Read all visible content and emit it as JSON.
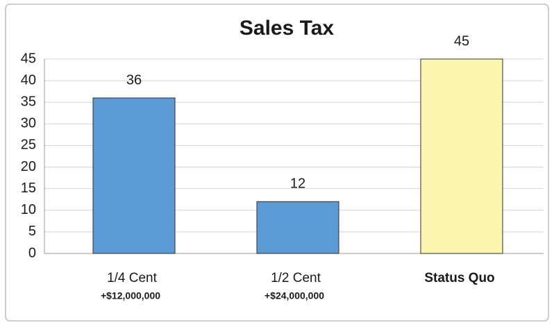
{
  "chart_data": {
    "type": "bar",
    "title": "Sales Tax",
    "categories": [
      "1/4 Cent",
      "1/2 Cent",
      "Status Quo"
    ],
    "sublabels": [
      "+$12,000,000",
      "+$24,000,000",
      null
    ],
    "values": [
      36,
      12,
      45
    ],
    "colors": [
      "#5b9bd5",
      "#5b9bd5",
      "#fbf5b0"
    ],
    "ylim": [
      0,
      45
    ],
    "yticks": [
      0,
      5,
      10,
      15,
      20,
      25,
      30,
      35,
      40,
      45
    ],
    "grid": true
  }
}
